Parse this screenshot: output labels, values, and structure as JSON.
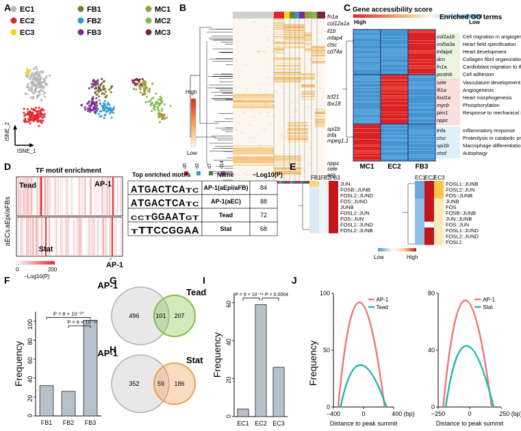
{
  "panel_letters": [
    "A",
    "B",
    "C",
    "D",
    "E",
    "F",
    "G",
    "H",
    "I",
    "J"
  ],
  "panelA": {
    "legend": [
      {
        "label": "EC1",
        "color": "#b8b8b8"
      },
      {
        "label": "EC2",
        "color": "#e0262b"
      },
      {
        "label": "EC3",
        "color": "#f1d71d"
      },
      {
        "label": "FB1",
        "color": "#7d7a2e"
      },
      {
        "label": "FB2",
        "color": "#2d9ad7"
      },
      {
        "label": "FB3",
        "color": "#7a2c8e"
      },
      {
        "label": "MC1",
        "color": "#a09a3a"
      },
      {
        "label": "MC2",
        "color": "#7cbd4d"
      },
      {
        "label": "MC3",
        "color": "#7c2347"
      }
    ],
    "axis_y": "tSNE_2",
    "axis_x": "tSNE_1"
  },
  "panelB": {
    "genes_top": [
      "fn1a",
      "col12a1a",
      "il1b",
      "mfap4",
      "ctsc",
      "cd74a"
    ],
    "genes_mid": [
      "tcf21",
      "tbx18"
    ],
    "genes_low": [
      "spi1b",
      "tnfa",
      "mpeg1.1"
    ],
    "genes_bottom": [
      "nppc",
      "sele",
      "erg"
    ],
    "scale_high": "High",
    "scale_low": "Low",
    "timepoints": [
      {
        "label": "d0",
        "color": "#e0262b"
      },
      {
        "label": "d2",
        "color": "#2d9ad7"
      },
      {
        "label": "d7",
        "color": "#4c7d3f"
      },
      {
        "label": "d14",
        "color": "#8b3a8e"
      }
    ]
  },
  "panelC": {
    "title": "Gene accessibility score",
    "scale_high": "High",
    "scale_low": "Low",
    "go_title": "Enriched GO terms",
    "genes_fb": [
      "col1a1b",
      "col5a3a",
      "tnfaip6",
      "dcn",
      "fn1a",
      "postnb"
    ],
    "go_fb": [
      "Cell migration in angiogenesis",
      "Heart field specification",
      "Heart development",
      "Collagen fibril organization",
      "Cardioblast migration to the midline",
      "Cell adhesion"
    ],
    "genes_ec": [
      "sele",
      "fli1a",
      "fosl1a",
      "mycb",
      "pim1",
      "nppc"
    ],
    "go_ec": [
      "Vasculature development",
      "Angiogenesis",
      "Heart morphogenesis",
      "Phosphorylation",
      "Response to mechanical stimulus"
    ],
    "genes_mc": [
      "tnfa",
      "ctsc",
      "spi1b",
      "ctsd"
    ],
    "go_mc": [
      "Inflammatory response",
      "Proteolysis in catabolic process",
      "Macrophage differentiation",
      "Autophagy"
    ],
    "cols": [
      "MC1",
      "EC2",
      "FB3"
    ],
    "col_colors": {
      "fb": "#7cb342",
      "ec": "#e0262b",
      "mc": "#2d9ad7"
    }
  },
  "panelD": {
    "title": "TF motif enrichment",
    "row1": "aEpi/aFBs",
    "row2": "aECs",
    "mark_tead": "Tead",
    "mark_ap1_a": "AP-1",
    "mark_stat": "Stat",
    "mark_ap1_b": "AP-1",
    "scale_min": "0",
    "scale_max": "200",
    "scale_label": "−Log10(P)",
    "table_headers": [
      "Top enriched motifs",
      "Name",
      "−Log10(P)"
    ],
    "rows": [
      {
        "motif": "ATGACTCATC",
        "name": "AP-1(aEpi/aFB)",
        "value": "84"
      },
      {
        "motif": "ATGACTCATC",
        "name": "AP-1(aEC)",
        "value": "88"
      },
      {
        "motif": "CCTGGAATGT",
        "name": "Tead",
        "value": "72"
      },
      {
        "motif": "TTTCCGGAA",
        "name": "Stat",
        "value": "68"
      }
    ]
  },
  "panelE": {
    "left_cols": [
      "FB1",
      "FB2",
      "FB3"
    ],
    "left_rows": [
      "JUN",
      "FOSB::JUNB",
      "FOSL2::JUND",
      "FOS::JUND",
      "JUNB",
      "FOSL2::JUN",
      "FOS::JUN",
      "FOSL1::JUND",
      "FOSL2::JUNB"
    ],
    "right_cols": [
      "EC1",
      "EC2",
      "EC3"
    ],
    "right_rows": [
      "FOSL1::JUNB",
      "FOSL2::JUN",
      "FOS::JUNB",
      "JUNB",
      "FOS",
      "FOSB::JUNB",
      "JUN::JUNB",
      "FOS::JUN",
      "FOSL1::JUND",
      "FOSL2::JUND",
      "FOSL1"
    ],
    "scale_low": "Low",
    "scale_high": "High"
  },
  "panelF": {
    "ylabel": "Frequency",
    "p1": "P = 8 × 10⁻¹⁰",
    "p2": "P = 6 × 10⁻¹²",
    "chart_data": {
      "type": "bar",
      "categories": [
        "FB1",
        "FB2",
        "FB3"
      ],
      "values": [
        32,
        26,
        101
      ],
      "ylim": [
        0,
        110
      ],
      "yticks": [
        0,
        20,
        40,
        60,
        80,
        100
      ],
      "ylabel": "Frequency"
    }
  },
  "panelG": {
    "left": "AP-1",
    "right": "Tead",
    "a": "496",
    "ab": "101",
    "b": "207"
  },
  "panelH": {
    "left": "AP-1",
    "right": "Stat",
    "a": "352",
    "ab": "59",
    "b": "186"
  },
  "panelI": {
    "ylabel": "Frequency",
    "p1": "P = 9 × 10⁻¹⁴",
    "p2": "P = 0.0004",
    "chart_data": {
      "type": "bar",
      "categories": [
        "EC1",
        "EC2",
        "EC3"
      ],
      "values": [
        4,
        59,
        26
      ],
      "ylim": [
        0,
        65
      ],
      "yticks": [
        0,
        20,
        40,
        60
      ],
      "ylabel": "Frequency"
    }
  },
  "panelJ": {
    "ylabel": "Frequency",
    "left": {
      "xlabel": "Distance to peak summit",
      "xticks": [
        "−400",
        "0",
        "400 (bp)"
      ],
      "yticks": [
        "0",
        "50",
        "100"
      ],
      "series": [
        {
          "name": "AP-1",
          "color": "#ee7a72",
          "peak": 92
        },
        {
          "name": "Tead",
          "color": "#1fb8b3",
          "peak": 37
        }
      ]
    },
    "right": {
      "xlabel": "Distance to peak summit",
      "xticks": [
        "−250",
        "0",
        "250 (bp)"
      ],
      "yticks": [
        "0",
        "40",
        "80"
      ],
      "series": [
        {
          "name": "AP-1",
          "color": "#ee7a72",
          "peak": 75
        },
        {
          "name": "Stat",
          "color": "#1fb8b3",
          "peak": 43
        }
      ]
    }
  }
}
